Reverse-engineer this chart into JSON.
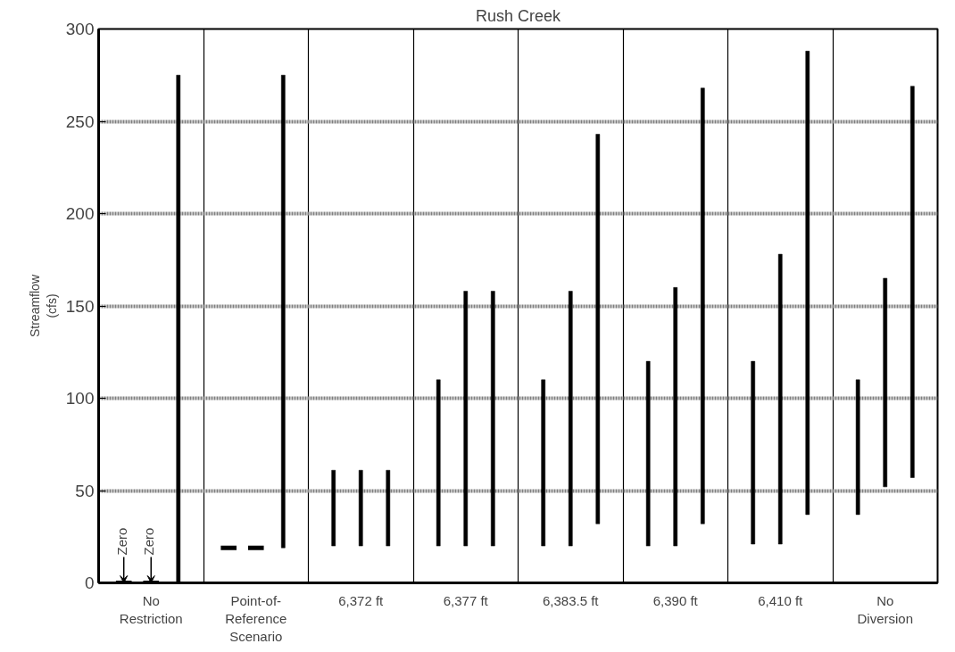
{
  "chart_data": {
    "type": "bar",
    "title": "Rush Creek",
    "ylabel": "Streamflow\n(cfs)",
    "categories": [
      "No\nRestriction",
      "Point-of-\nReference\nScenario",
      "6,372 ft",
      "6,377 ft",
      "6,383.5 ft",
      "6,390 ft",
      "6,410 ft",
      "No\nDiversion"
    ],
    "series": [
      {
        "color": "#000000",
        "base": [
          0,
          19,
          20,
          20,
          20,
          20,
          21,
          37
        ],
        "values": [
          0,
          0,
          41,
          90,
          90,
          100,
          99,
          73
        ]
      },
      {
        "color": "#000000",
        "base": [
          0,
          19,
          20,
          20,
          20,
          20,
          21,
          52
        ],
        "values": [
          0,
          0,
          41,
          138,
          138,
          140,
          157,
          113
        ]
      },
      {
        "color": "#000000",
        "base": [
          0,
          19,
          20,
          20,
          32,
          32,
          37,
          57
        ],
        "values": [
          275,
          256,
          41,
          138,
          211,
          236,
          251,
          212
        ]
      }
    ],
    "annotations": [
      {
        "text": "Zero",
        "x": "No\nRestriction",
        "y": 0
      },
      {
        "text": "Zero",
        "x": "No\nRestriction",
        "y": 0
      }
    ],
    "ylim": [
      0,
      300
    ],
    "yticks": [
      0,
      50,
      100,
      150,
      200,
      250,
      300
    ],
    "grid": true
  }
}
